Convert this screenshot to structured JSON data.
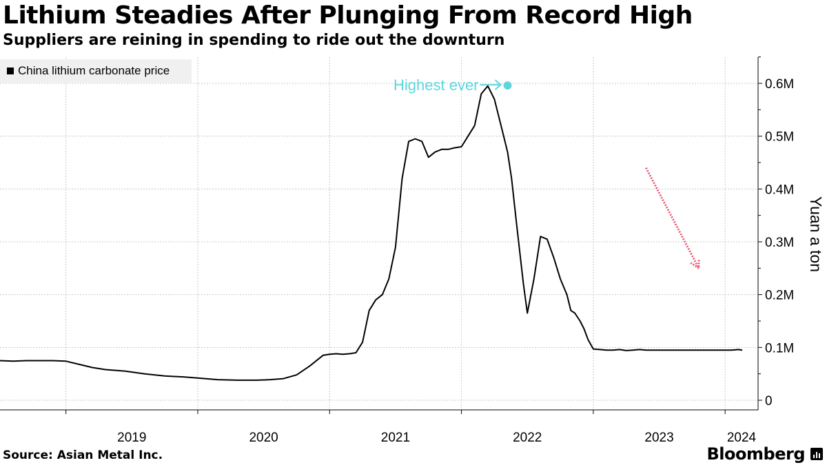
{
  "header": {
    "title": "Lithium Steadies After Plunging From Record High",
    "subtitle": "Suppliers are reining in spending to ride out the downturn"
  },
  "footer": {
    "source": "Source: Asian Metal Inc.",
    "brand": "Bloomberg"
  },
  "colors": {
    "line": "#000000",
    "grid": "#c8c8c8",
    "highlight": "#5ed6dc",
    "trend_arrow": "#e8556e",
    "legend_bg": "#f0f0f0"
  },
  "chart_data": {
    "type": "line",
    "title": "Lithium Steadies After Plunging From Record High",
    "subtitle": "Suppliers are reining in spending to ride out the downturn",
    "xlabel": "",
    "ylabel": "Yuan a ton",
    "x_range": [
      2018.5,
      2024.25
    ],
    "ylim": [
      0,
      650000
    ],
    "x_ticks": [
      2019,
      2020,
      2021,
      2022,
      2023,
      2024
    ],
    "x_tick_labels": [
      "2019",
      "2020",
      "2021",
      "2022",
      "2023",
      "2024"
    ],
    "y_ticks": [
      0,
      100000,
      200000,
      300000,
      400000,
      500000,
      600000
    ],
    "y_tick_labels": [
      "0",
      "0.1M",
      "0.2M",
      "0.3M",
      "0.4M",
      "0.5M",
      "0.6M"
    ],
    "grid": true,
    "legend_position": "top-left",
    "series": [
      {
        "name": "China lithium carbonate price",
        "x": [
          2018.5,
          2018.6,
          2018.7,
          2018.8,
          2018.9,
          2019.0,
          2019.1,
          2019.2,
          2019.3,
          2019.45,
          2019.6,
          2019.75,
          2019.9,
          2020.0,
          2020.15,
          2020.3,
          2020.45,
          2020.55,
          2020.65,
          2020.75,
          2020.85,
          2020.95,
          2021.0,
          2021.05,
          2021.1,
          2021.15,
          2021.2,
          2021.25,
          2021.3,
          2021.35,
          2021.4,
          2021.45,
          2021.5,
          2021.55,
          2021.6,
          2021.65,
          2021.7,
          2021.75,
          2021.8,
          2021.85,
          2021.9,
          2021.95,
          2022.0,
          2022.05,
          2022.1,
          2022.15,
          2022.2,
          2022.25,
          2022.3,
          2022.35,
          2022.38,
          2022.42,
          2022.47,
          2022.5,
          2022.55,
          2022.6,
          2022.65,
          2022.7,
          2022.75,
          2022.8,
          2022.83,
          2022.86,
          2022.9,
          2022.93,
          2022.96,
          2023.0,
          2023.05,
          2023.1,
          2023.15,
          2023.2,
          2023.25,
          2023.3,
          2023.35,
          2023.4,
          2023.45,
          2023.5,
          2023.55,
          2023.6,
          2023.65,
          2023.7,
          2023.75,
          2023.8,
          2023.85,
          2023.9,
          2023.95,
          2024.0,
          2024.05,
          2024.1,
          2024.13
        ],
        "values": [
          75000,
          74000,
          75000,
          75000,
          75000,
          74000,
          68000,
          62000,
          58000,
          55000,
          50000,
          46000,
          44000,
          42000,
          39000,
          38000,
          38000,
          39000,
          41000,
          48000,
          65000,
          85000,
          87000,
          88000,
          87000,
          88000,
          90000,
          110000,
          170000,
          190000,
          200000,
          230000,
          290000,
          420000,
          490000,
          495000,
          490000,
          460000,
          470000,
          475000,
          475000,
          478000,
          480000,
          500000,
          520000,
          580000,
          595000,
          570000,
          520000,
          470000,
          420000,
          330000,
          220000,
          165000,
          230000,
          310000,
          305000,
          270000,
          230000,
          200000,
          170000,
          165000,
          150000,
          135000,
          115000,
          97000,
          96000,
          95000,
          95000,
          96000,
          94000,
          95000,
          96000,
          95000,
          95000,
          95000,
          95000,
          95000,
          95000,
          95000,
          95000,
          95000,
          95000,
          95000,
          95000,
          95000,
          95000,
          96000,
          95000
        ]
      }
    ],
    "annotations": [
      {
        "text": "Highest ever",
        "x": 2022.35,
        "y": 596000
      },
      {
        "text": "",
        "type": "trend-arrow",
        "from": [
          2023.4,
          440000
        ],
        "to": [
          2023.8,
          250000
        ]
      }
    ]
  },
  "legend": {
    "label": "China lithium carbonate price"
  }
}
